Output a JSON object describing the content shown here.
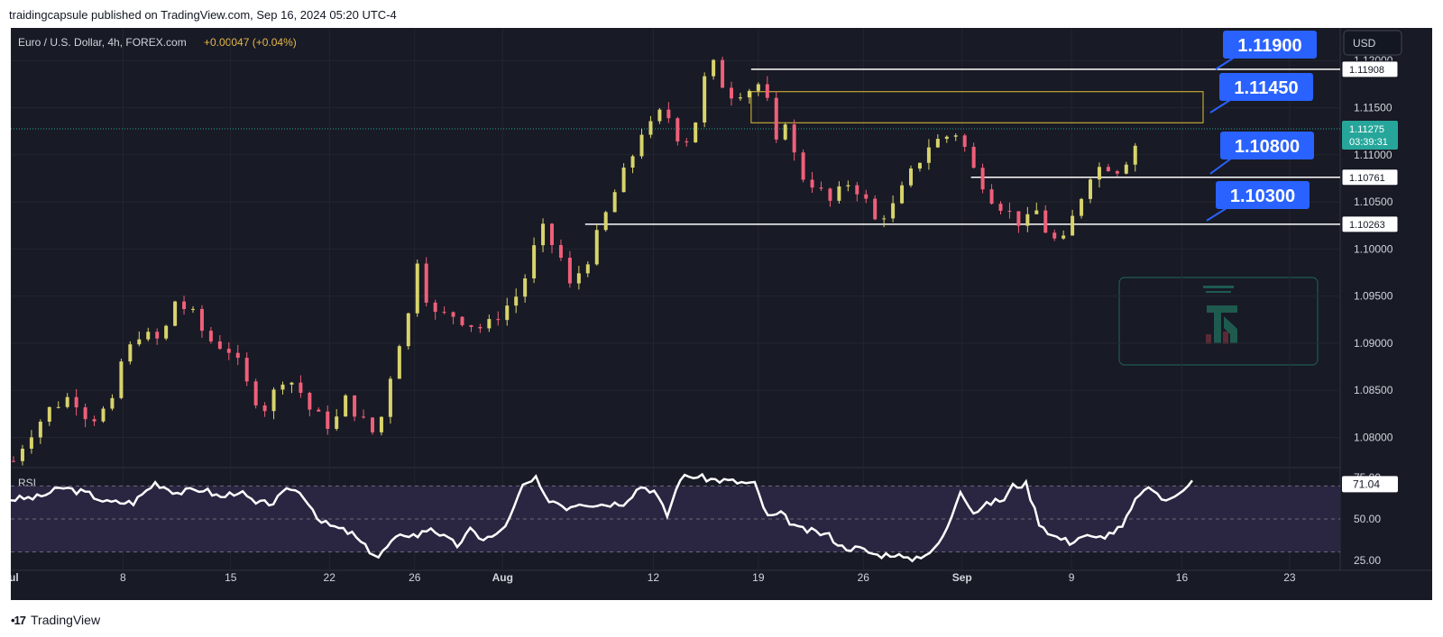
{
  "header": {
    "text": "traidingcapsule published on TradingView.com, Sep 16, 2024 05:20 UTC-4"
  },
  "footer": {
    "brand": "TradingView"
  },
  "colors": {
    "bg": "#181a25",
    "up": "#d8d36b",
    "down": "#ef5f79",
    "annotation": "#2962ff",
    "rsi_band": "#2a2541",
    "price_tag": "#26a69a"
  },
  "chart_data": [
    {
      "type": "candlestick",
      "title": "Euro / U.S. Dollar, 4h, FOREX.com",
      "change": "+0.00047 (+0.04%)",
      "currency": "USD",
      "ylim": [
        1.0768,
        1.1205
      ],
      "y_ticks": [
        "1.12000",
        "1.11500",
        "1.11000",
        "1.10500",
        "1.10000",
        "1.09500",
        "1.09000",
        "1.08500",
        "1.08000"
      ],
      "x_ticks": [
        "Jul",
        "8",
        "15",
        "22",
        "26",
        "Aug",
        "12",
        "19",
        "26",
        "Sep",
        "9",
        "16",
        "23"
      ],
      "close_path": [
        [
          0,
          1.0775
        ],
        [
          1.5,
          1.08
        ],
        [
          4,
          1.083
        ],
        [
          6.5,
          1.0845
        ],
        [
          8.5,
          1.0818
        ],
        [
          11,
          1.0835
        ],
        [
          12,
          1.088
        ],
        [
          14,
          1.091
        ],
        [
          16.5,
          1.0902
        ],
        [
          18,
          1.0945
        ],
        [
          20,
          1.093
        ],
        [
          21.5,
          1.0905
        ],
        [
          24,
          1.0893
        ],
        [
          25,
          1.0878
        ],
        [
          26.5,
          1.0845
        ],
        [
          28,
          1.0832
        ],
        [
          30,
          1.0863
        ],
        [
          31.5,
          1.0857
        ],
        [
          33,
          1.083
        ],
        [
          35.5,
          1.081
        ],
        [
          37,
          1.084
        ],
        [
          38.5,
          1.0822
        ],
        [
          40.5,
          1.08
        ],
        [
          42.5,
          1.0888
        ],
        [
          44,
          1.093
        ],
        [
          45,
          1.099
        ],
        [
          46,
          1.095
        ],
        [
          47,
          1.093
        ],
        [
          49,
          1.093
        ],
        [
          51,
          1.092
        ],
        [
          52.5,
          1.0915
        ],
        [
          54.5,
          1.0935
        ],
        [
          56.5,
          1.0955
        ],
        [
          58,
          1.1
        ],
        [
          59,
          1.102
        ],
        [
          60,
          1.1005
        ],
        [
          61,
          1.099
        ],
        [
          62,
          1.096
        ],
        [
          64,
          1.099
        ],
        [
          65.5,
          1.1025
        ],
        [
          67,
          1.106
        ],
        [
          69,
          1.11
        ],
        [
          70,
          1.1125
        ],
        [
          71,
          1.113
        ],
        [
          72.5,
          1.115
        ],
        [
          74,
          1.112
        ],
        [
          75.5,
          1.1115
        ],
        [
          77,
          1.118
        ],
        [
          78,
          1.1195
        ],
        [
          79,
          1.1175
        ],
        [
          80,
          1.1165
        ],
        [
          82,
          1.117
        ],
        [
          82.5,
          1.1185
        ],
        [
          84,
          1.1155
        ],
        [
          85,
          1.111
        ],
        [
          86,
          1.1138
        ],
        [
          87.5,
          1.108
        ],
        [
          89,
          1.107
        ],
        [
          91,
          1.105
        ],
        [
          93,
          1.107
        ],
        [
          94.5,
          1.106
        ],
        [
          96,
          1.103
        ],
        [
          98,
          1.1045
        ],
        [
          100,
          1.108
        ],
        [
          102,
          1.111
        ],
        [
          103.5,
          1.1118
        ],
        [
          105.5,
          1.1125
        ],
        [
          106.5,
          1.109
        ],
        [
          107.5,
          1.1078
        ],
        [
          109,
          1.1055
        ],
        [
          110.5,
          1.1042
        ],
        [
          112.5,
          1.1025
        ],
        [
          114,
          1.104
        ],
        [
          115.5,
          1.101
        ],
        [
          117,
          1.1008
        ],
        [
          118.5,
          1.1045
        ],
        [
          120,
          1.108
        ],
        [
          121.5,
          1.109
        ],
        [
          123,
          1.1085
        ],
        [
          124.5,
          1.11
        ],
        [
          125.8,
          1.1128
        ]
      ],
      "levels": [
        {
          "price": 1.11908,
          "tag": "1.11908",
          "callout": "1.11900",
          "start_bar": 82.5
        },
        {
          "price": 1.10761,
          "tag": "1.10761",
          "callout": "1.10800",
          "start_bar": 107
        },
        {
          "price": 1.10263,
          "tag": "1.10263",
          "callout": "1.10300",
          "start_bar": 64
        }
      ],
      "zone": {
        "low": 1.1134,
        "high": 1.1167,
        "callout": "1.11450",
        "start_bar": 82.5
      },
      "current": {
        "price": "1.11275",
        "countdown": "03:39:31",
        "value": 1.11275
      }
    },
    {
      "type": "line",
      "title": "RSI",
      "value_tag": "71.04",
      "ylim": [
        20,
        80
      ],
      "y_ticks": [
        "75.00",
        "50.00",
        "25.00"
      ],
      "band": [
        30,
        70
      ],
      "values_path": [
        [
          0,
          62
        ],
        [
          3,
          63
        ],
        [
          6,
          69
        ],
        [
          9,
          65
        ],
        [
          11,
          60
        ],
        [
          14,
          60
        ],
        [
          16.5,
          72
        ],
        [
          19,
          66
        ],
        [
          22,
          68
        ],
        [
          24,
          63
        ],
        [
          26,
          67
        ],
        [
          28,
          59
        ],
        [
          30,
          60
        ],
        [
          32,
          69
        ],
        [
          33.5,
          64
        ],
        [
          35.5,
          48
        ],
        [
          37.5,
          44
        ],
        [
          39,
          41
        ],
        [
          40.5,
          33
        ],
        [
          42,
          27
        ],
        [
          43.5,
          36
        ],
        [
          45,
          41
        ],
        [
          46.5,
          40
        ],
        [
          48,
          45
        ],
        [
          49.5,
          39
        ],
        [
          51,
          34
        ],
        [
          52.5,
          43
        ],
        [
          54,
          38
        ],
        [
          55.5,
          40
        ],
        [
          57,
          50
        ],
        [
          58.5,
          70
        ],
        [
          60,
          74
        ],
        [
          61,
          63
        ],
        [
          62.5,
          60
        ],
        [
          63.5,
          57
        ],
        [
          65,
          60
        ],
        [
          66.5,
          59
        ],
        [
          68,
          59
        ],
        [
          70,
          60
        ],
        [
          72,
          70
        ],
        [
          73.5,
          67
        ],
        [
          75,
          52
        ],
        [
          76.5,
          75
        ],
        [
          78,
          76
        ],
        [
          80,
          74
        ],
        [
          82,
          73
        ],
        [
          83.5,
          72
        ],
        [
          85,
          71
        ],
        [
          86.5,
          51
        ],
        [
          88,
          53
        ],
        [
          90,
          44
        ],
        [
          92,
          42
        ],
        [
          93.5,
          40
        ],
        [
          95,
          33
        ],
        [
          97,
          32
        ],
        [
          99,
          28
        ],
        [
          101,
          29
        ],
        [
          102.5,
          25
        ],
        [
          104,
          28
        ],
        [
          105.5,
          31
        ],
        [
          107,
          44
        ],
        [
          108.5,
          68
        ],
        [
          110,
          54
        ],
        [
          112,
          60
        ],
        [
          113.5,
          62
        ],
        [
          114.5,
          70
        ],
        [
          116,
          71
        ],
        [
          117.5,
          48
        ],
        [
          119,
          40
        ],
        [
          121,
          36
        ],
        [
          122.5,
          40
        ],
        [
          124,
          38
        ],
        [
          125.5,
          41
        ],
        [
          127,
          45
        ],
        [
          129,
          66
        ],
        [
          130.5,
          68
        ],
        [
          132,
          60
        ],
        [
          133.5,
          67
        ],
        [
          135,
          73
        ]
      ]
    }
  ]
}
